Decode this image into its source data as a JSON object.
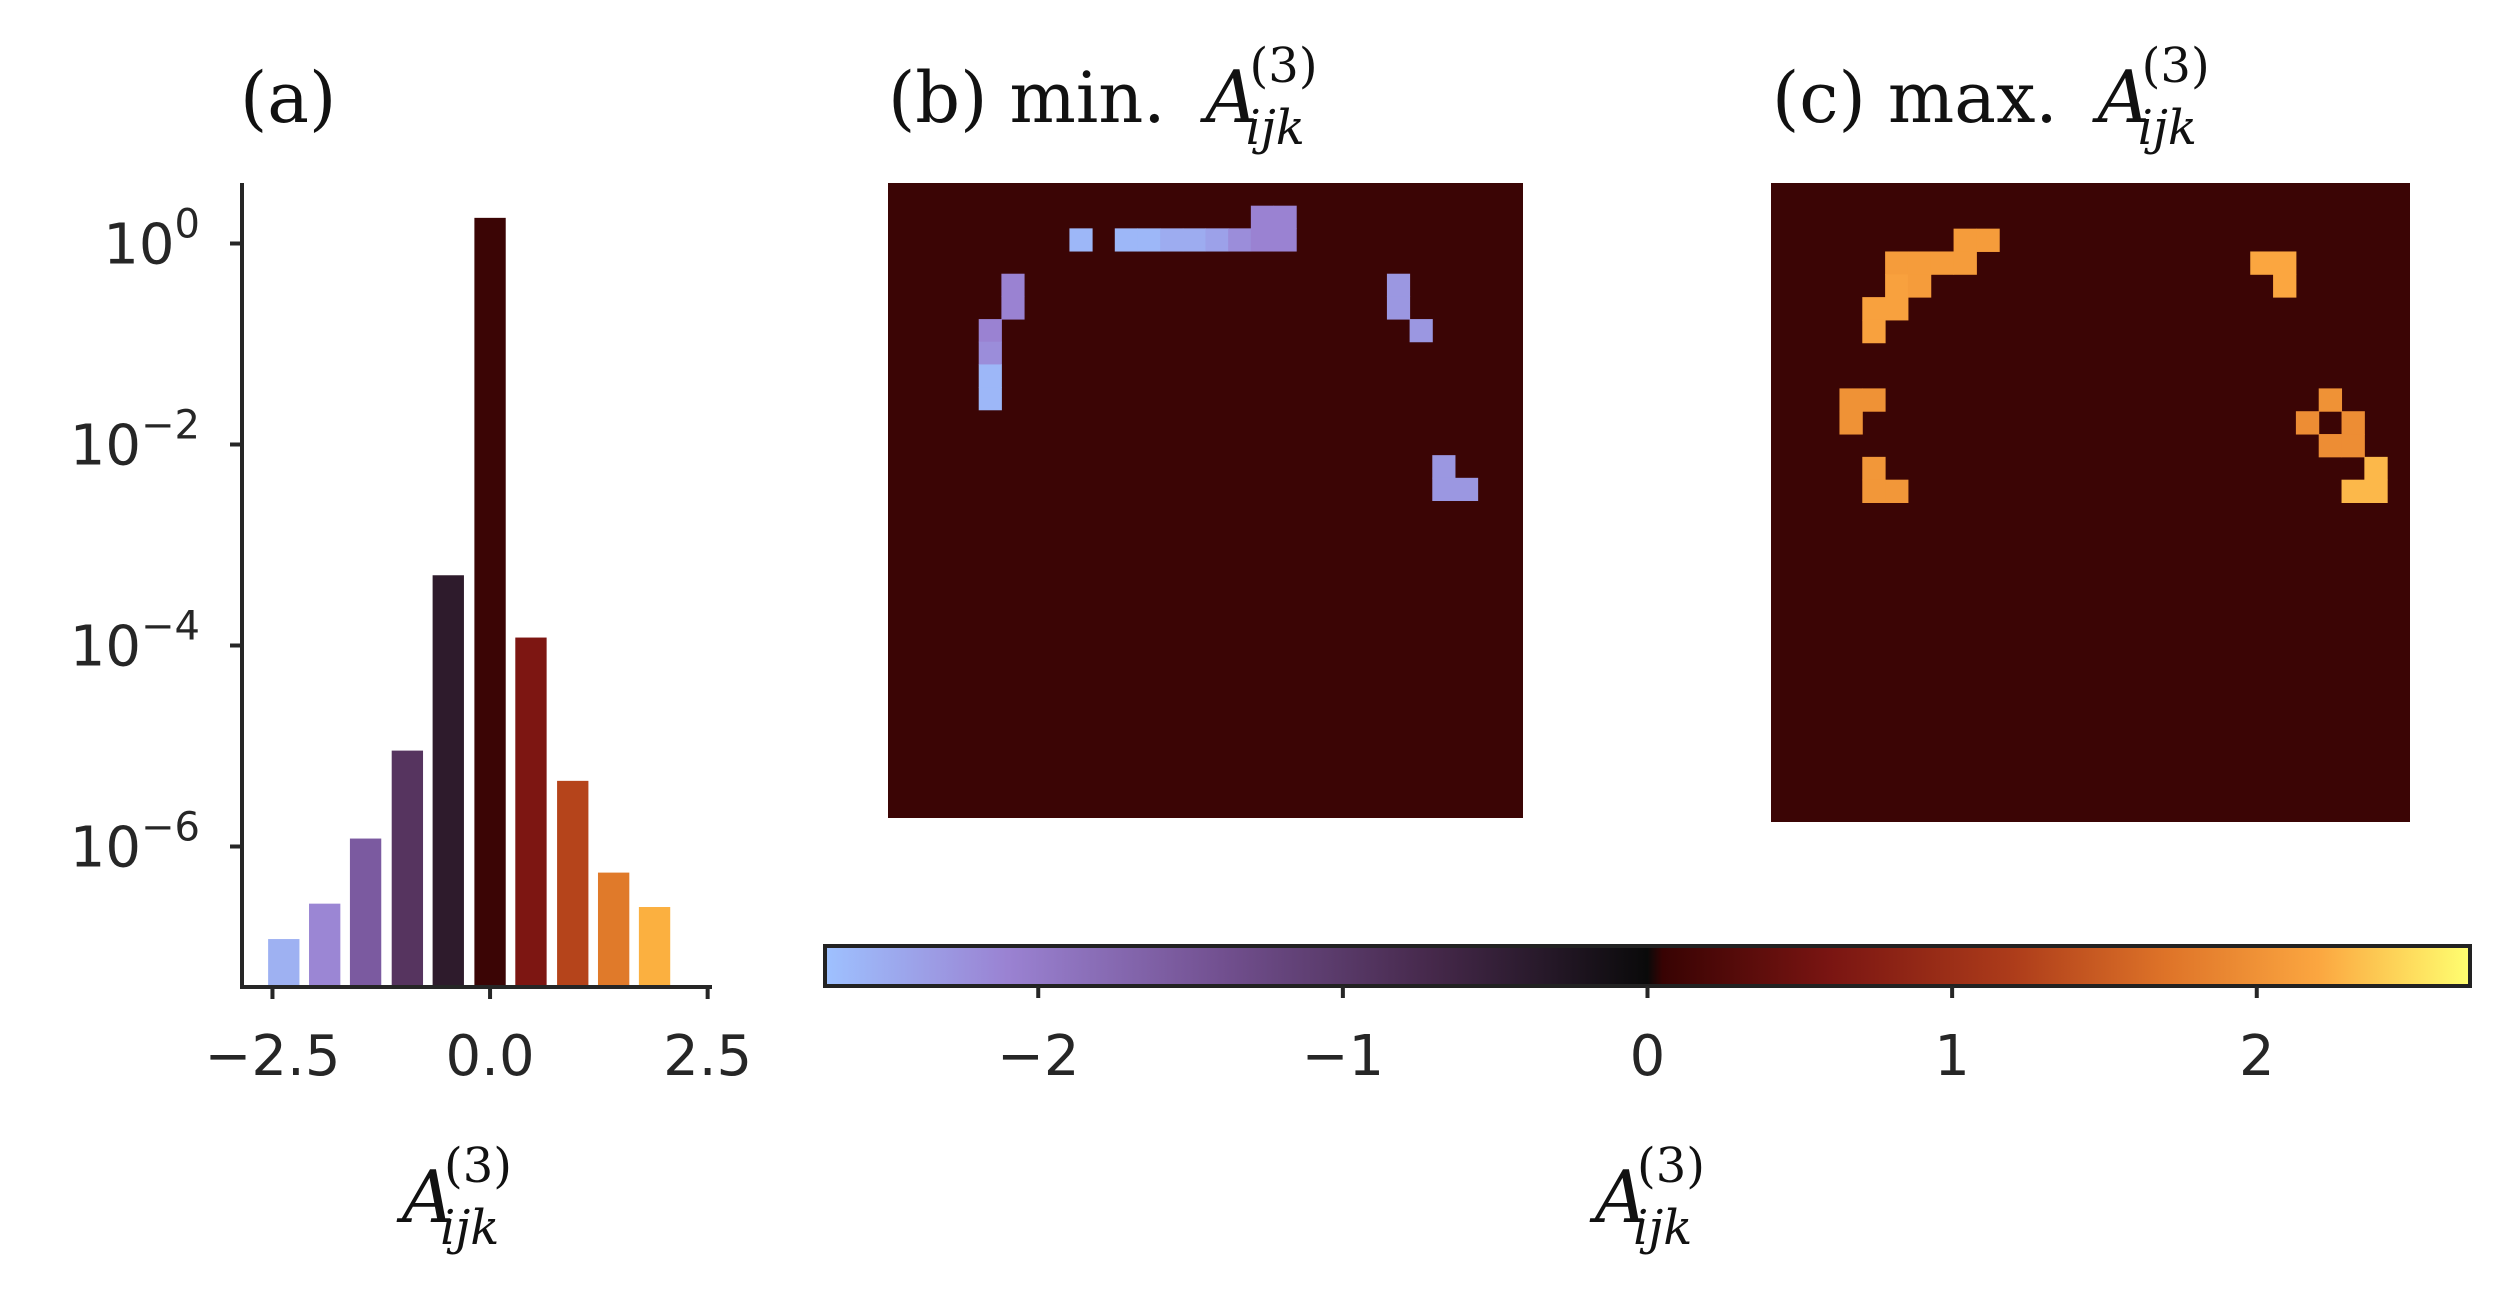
{
  "chart_data": [
    {
      "type": "bar",
      "panel_label": "(a)",
      "title": "",
      "xlabel": {
        "main": "A",
        "sup": "(3)",
        "sub": "ijk"
      },
      "ylabel": "",
      "yscale": "log",
      "ylim": [
        4e-08,
        4
      ],
      "xlim": [
        -2.85,
        2.55
      ],
      "x_ticks": [
        {
          "value": -2.5,
          "label": "−2.5"
        },
        {
          "value": 0.0,
          "label": "0.0"
        },
        {
          "value": 2.5,
          "label": "2.5"
        }
      ],
      "y_ticks": [
        {
          "value": 1,
          "base": "10",
          "exp": "0"
        },
        {
          "value": 0.01,
          "base": "10",
          "exp": "−2"
        },
        {
          "value": 0.0001,
          "base": "10",
          "exp": "−4"
        },
        {
          "value": 1e-06,
          "base": "10",
          "exp": "−6"
        }
      ],
      "x": [
        -2.37,
        -1.9,
        -1.43,
        -0.95,
        -0.48,
        0.0,
        0.47,
        0.95,
        1.42,
        1.89
      ],
      "values": [
        1.2e-07,
        2.7e-07,
        1.2e-06,
        9e-06,
        0.0005,
        1.8,
        0.00012,
        4.5e-06,
        5.5e-07,
        2.5e-07
      ],
      "colors": [
        "#9eb1f2",
        "#9b86d4",
        "#7b5aa0",
        "#56345f",
        "#2e1b2c",
        "#3b0505",
        "#7d1612",
        "#b5441b",
        "#e07a2a",
        "#fbb040"
      ],
      "grid": false
    },
    {
      "type": "heatmap",
      "panel_label": "(b)",
      "title_text": "min.",
      "title_symbol": {
        "main": "A",
        "sup": "(3)",
        "sub": "ijk"
      },
      "background": "#3b0505",
      "grid_size": 28,
      "cells": [
        {
          "row": 2,
          "col": 8,
          "value": -2.6
        },
        {
          "row": 2,
          "col": 10,
          "value": -2.6
        },
        {
          "row": 2,
          "col": 11,
          "value": -2.6
        },
        {
          "row": 2,
          "col": 12,
          "value": -2.5
        },
        {
          "row": 2,
          "col": 13,
          "value": -2.5
        },
        {
          "row": 2,
          "col": 14,
          "value": -2.4
        },
        {
          "row": 2,
          "col": 15,
          "value": -2.2
        },
        {
          "row": 2,
          "col": 16,
          "value": -2.1
        },
        {
          "row": 2,
          "col": 17,
          "value": -2.1
        },
        {
          "row": 1,
          "col": 16,
          "value": -2.1
        },
        {
          "row": 1,
          "col": 17,
          "value": -2.1
        },
        {
          "row": 4,
          "col": 5,
          "value": -2.1
        },
        {
          "row": 5,
          "col": 5,
          "value": -2.1
        },
        {
          "row": 6,
          "col": 4,
          "value": -2.1
        },
        {
          "row": 7,
          "col": 4,
          "value": -2.2
        },
        {
          "row": 8,
          "col": 4,
          "value": -2.6
        },
        {
          "row": 9,
          "col": 4,
          "value": -2.6
        },
        {
          "row": 4,
          "col": 22,
          "value": -2.3
        },
        {
          "row": 5,
          "col": 22,
          "value": -2.3
        },
        {
          "row": 6,
          "col": 23,
          "value": -2.3
        },
        {
          "row": 12,
          "col": 24,
          "value": -2.3
        },
        {
          "row": 13,
          "col": 24,
          "value": -2.3
        },
        {
          "row": 13,
          "col": 25,
          "value": -2.3
        }
      ]
    },
    {
      "type": "heatmap",
      "panel_label": "(c)",
      "title_text": "max.",
      "title_symbol": {
        "main": "A",
        "sup": "(3)",
        "sub": "ijk"
      },
      "background": "#3b0505",
      "grid_size": 28,
      "cells": [
        {
          "row": 2,
          "col": 8,
          "value": 2.1
        },
        {
          "row": 2,
          "col": 9,
          "value": 2.1
        },
        {
          "row": 3,
          "col": 5,
          "value": 2.1
        },
        {
          "row": 3,
          "col": 6,
          "value": 2.1
        },
        {
          "row": 3,
          "col": 7,
          "value": 2.1
        },
        {
          "row": 3,
          "col": 8,
          "value": 2.1
        },
        {
          "row": 4,
          "col": 5,
          "value": 2.15
        },
        {
          "row": 4,
          "col": 6,
          "value": 2.1
        },
        {
          "row": 5,
          "col": 4,
          "value": 2.15
        },
        {
          "row": 5,
          "col": 5,
          "value": 2.15
        },
        {
          "row": 6,
          "col": 4,
          "value": 2.15
        },
        {
          "row": 3,
          "col": 21,
          "value": 2.2
        },
        {
          "row": 3,
          "col": 22,
          "value": 2.2
        },
        {
          "row": 4,
          "col": 22,
          "value": 2.2
        },
        {
          "row": 9,
          "col": 3,
          "value": 2.0
        },
        {
          "row": 9,
          "col": 4,
          "value": 2.0
        },
        {
          "row": 10,
          "col": 3,
          "value": 2.0
        },
        {
          "row": 12,
          "col": 4,
          "value": 2.05
        },
        {
          "row": 13,
          "col": 4,
          "value": 2.05
        },
        {
          "row": 13,
          "col": 5,
          "value": 2.05
        },
        {
          "row": 9,
          "col": 24,
          "value": 2.0
        },
        {
          "row": 10,
          "col": 23,
          "value": 1.95
        },
        {
          "row": 10,
          "col": 25,
          "value": 1.95
        },
        {
          "row": 11,
          "col": 24,
          "value": 1.95
        },
        {
          "row": 11,
          "col": 25,
          "value": 1.95
        },
        {
          "row": 12,
          "col": 26,
          "value": 2.3
        },
        {
          "row": 13,
          "col": 25,
          "value": 2.3
        },
        {
          "row": 13,
          "col": 26,
          "value": 2.3
        }
      ]
    }
  ],
  "colorbar": {
    "vmin": -2.7,
    "vmax": 2.7,
    "ticks": [
      {
        "value": -2,
        "label": "−2"
      },
      {
        "value": -1,
        "label": "−1"
      },
      {
        "value": 0,
        "label": "0"
      },
      {
        "value": 1,
        "label": "1"
      },
      {
        "value": 2,
        "label": "2"
      }
    ],
    "label": {
      "main": "A",
      "sup": "(3)",
      "sub": "ijk"
    },
    "stops": [
      {
        "value": -2.7,
        "color": "#9ec1ff"
      },
      {
        "value": -2.1,
        "color": "#9a82d2"
      },
      {
        "value": -1.4,
        "color": "#725090"
      },
      {
        "value": -0.7,
        "color": "#45284a"
      },
      {
        "value": 0.0,
        "color": "#0a0a0a"
      },
      {
        "value": 0.05,
        "color": "#380303"
      },
      {
        "value": 0.6,
        "color": "#7a1512"
      },
      {
        "value": 1.2,
        "color": "#ad3c1a"
      },
      {
        "value": 1.7,
        "color": "#de7328"
      },
      {
        "value": 2.2,
        "color": "#fba640"
      },
      {
        "value": 2.7,
        "color": "#ffff70"
      }
    ]
  }
}
